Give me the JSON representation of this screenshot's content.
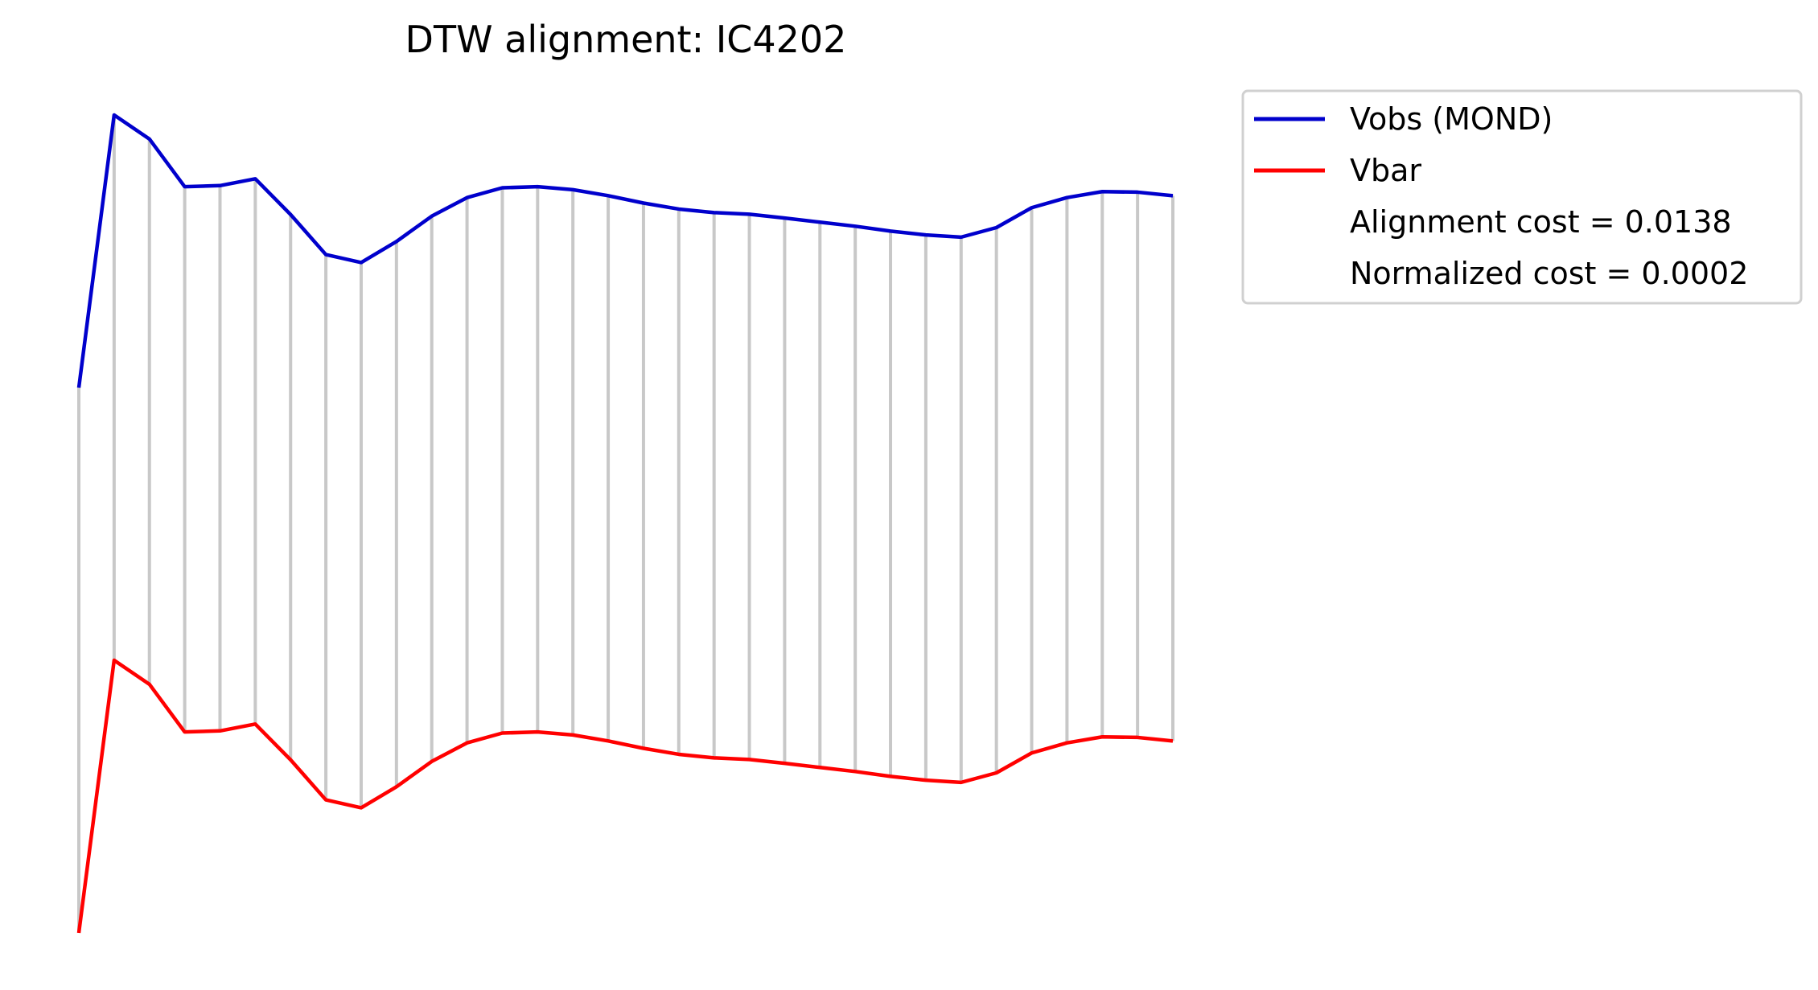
{
  "chart_data": {
    "type": "line",
    "title": "DTW alignment: IC4202",
    "xlabel": "",
    "ylabel": "",
    "axes_visible": false,
    "grid": false,
    "legend": {
      "placement": "outside-top-right",
      "entries": [
        "Vobs (MOND)",
        "Vbar"
      ],
      "notes": [
        "Alignment cost = 0.0138",
        "Normalized cost = 0.0002"
      ]
    },
    "alignment_connector_color": "#c8c8c8",
    "x": [
      0,
      1,
      2,
      3,
      4,
      5,
      6,
      7,
      8,
      9,
      10,
      11,
      12,
      13,
      14,
      15,
      16,
      17,
      18,
      19,
      20,
      21,
      22,
      23,
      24,
      25,
      26,
      27,
      28,
      29,
      30,
      31
    ],
    "series": [
      {
        "name": "Vobs (MOND)",
        "color": "#0000cc",
        "values": [
          0.0,
          1.0,
          0.912,
          0.737,
          0.741,
          0.766,
          0.635,
          0.488,
          0.459,
          0.536,
          0.629,
          0.697,
          0.733,
          0.737,
          0.726,
          0.704,
          0.677,
          0.655,
          0.642,
          0.636,
          0.622,
          0.607,
          0.592,
          0.574,
          0.56,
          0.552,
          0.587,
          0.66,
          0.697,
          0.719,
          0.717,
          0.704
        ]
      },
      {
        "name": "Vbar",
        "color": "#ff0000",
        "values": [
          -2.0,
          -1.0,
          -1.088,
          -1.263,
          -1.259,
          -1.234,
          -1.365,
          -1.512,
          -1.541,
          -1.464,
          -1.371,
          -1.303,
          -1.267,
          -1.263,
          -1.274,
          -1.296,
          -1.323,
          -1.345,
          -1.358,
          -1.364,
          -1.378,
          -1.393,
          -1.408,
          -1.426,
          -1.44,
          -1.448,
          -1.413,
          -1.34,
          -1.303,
          -1.281,
          -1.283,
          -1.296
        ]
      }
    ],
    "xlim": [
      0,
      31
    ],
    "ylim": [
      -2.0,
      1.0
    ]
  }
}
